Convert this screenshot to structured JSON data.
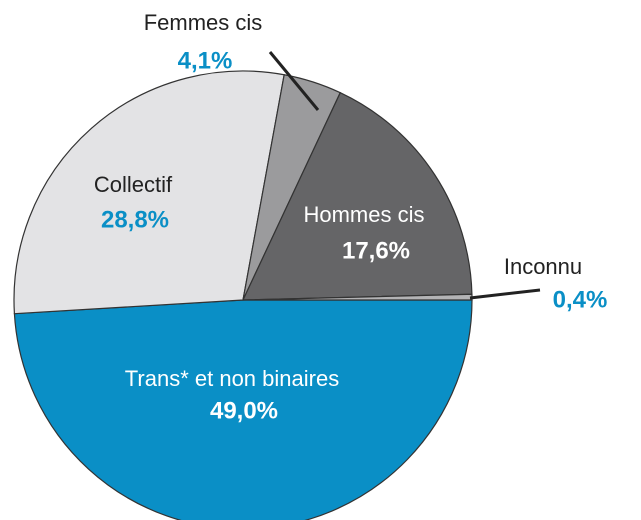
{
  "chart_data": {
    "type": "pie",
    "categories": [
      "Trans* et non binaires",
      "Collectif",
      "Femmes cis",
      "Hommes cis",
      "Inconnu"
    ],
    "values": [
      49.0,
      28.8,
      4.1,
      17.6,
      0.4
    ],
    "value_labels": [
      "49,0%",
      "28,8%",
      "4,1%",
      "17,6%",
      "0,4%"
    ],
    "colors": [
      "#0a8fc6",
      "#e3e3e5",
      "#9b9b9d",
      "#656567",
      "#b3b3b5"
    ]
  }
}
